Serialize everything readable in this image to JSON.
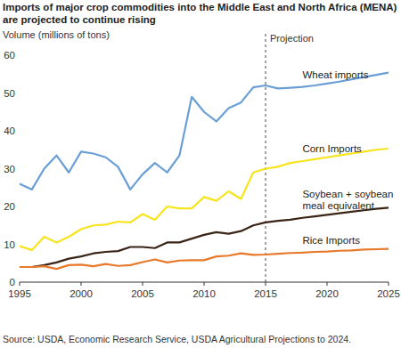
{
  "chart_data": {
    "type": "line",
    "title": "Imports of major crop commodities into the Middle East and North Africa (MENA) are projected to continue rising",
    "y_label": "Volume (millions of tons)",
    "source": "Source: USDA, Economic Research Service, USDA Agricultural Projections to 2024.",
    "annotations": [
      {
        "x": 2015,
        "text": "Projection"
      }
    ],
    "x": [
      1995,
      1996,
      1997,
      1998,
      1999,
      2000,
      2001,
      2002,
      2003,
      2004,
      2005,
      2006,
      2007,
      2008,
      2009,
      2010,
      2011,
      2012,
      2013,
      2014,
      2015,
      2016,
      2017,
      2018,
      2019,
      2020,
      2021,
      2022,
      2023,
      2024,
      2025
    ],
    "xlim": [
      1995,
      2025
    ],
    "xticks": [
      1995,
      2000,
      2005,
      2010,
      2015,
      2020,
      2025
    ],
    "ylim": [
      0,
      60
    ],
    "yticks": [
      0,
      10,
      20,
      30,
      40,
      50,
      60
    ],
    "grid": false,
    "series": [
      {
        "name": "Wheat imports",
        "color": "#6a9fd6",
        "values": [
          26,
          24.5,
          30,
          33.5,
          29,
          34.5,
          34,
          33,
          30.5,
          24.5,
          28.5,
          31.5,
          29,
          33.5,
          49,
          45,
          42.5,
          46,
          47.5,
          51.5,
          52,
          51.2,
          51.4,
          51.6,
          52,
          52.5,
          53,
          53.6,
          54.2,
          54.8,
          55.4
        ]
      },
      {
        "name": "Corn Imports",
        "color": "#f7e41c",
        "values": [
          9.5,
          8.5,
          12,
          10.5,
          12,
          14,
          15,
          15.2,
          16,
          15.8,
          18,
          16.5,
          20,
          19.5,
          19.5,
          22.5,
          21.5,
          24,
          22,
          29,
          30,
          30.5,
          31.5,
          32,
          32.5,
          33,
          33.5,
          34,
          34.5,
          35,
          35.3
        ]
      },
      {
        "name": "Soybean + soybean meal equivalent",
        "color": "#3a2416",
        "values": [
          4,
          4,
          4.5,
          5.2,
          6.2,
          6.8,
          7.6,
          8,
          8.2,
          9.3,
          9.3,
          9,
          10.5,
          10.5,
          11.5,
          12.5,
          13.2,
          12.8,
          13.5,
          15,
          15.8,
          16.2,
          16.5,
          17,
          17.4,
          17.8,
          18.2,
          18.6,
          19,
          19.4,
          19.7
        ]
      },
      {
        "name": "Rice Imports",
        "color": "#e8782a",
        "values": [
          4,
          4,
          4.2,
          3.5,
          4.5,
          4.6,
          4.2,
          4.8,
          4.3,
          4.5,
          5.3,
          6,
          5.2,
          5.7,
          5.8,
          5.8,
          6.8,
          7,
          7.6,
          7.2,
          7.3,
          7.5,
          7.7,
          7.8,
          8,
          8.1,
          8.3,
          8.4,
          8.6,
          8.7,
          8.8
        ]
      }
    ]
  }
}
